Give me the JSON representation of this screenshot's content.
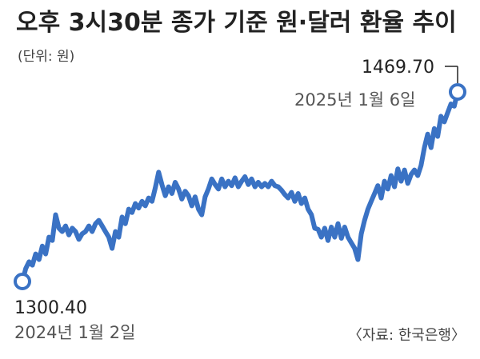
{
  "chart_data": {
    "type": "line",
    "title": "오후 3시30분 종가 기준 원·달러 환율 추이",
    "unit_label": "(단위: 원)",
    "source": "〈자료: 한국은행〉",
    "line_color": "#3a72c4",
    "start": {
      "value_label": "1300.40",
      "date_label": "2024년 1월 2일",
      "value": 1300.4
    },
    "end": {
      "value_label": "1469.70",
      "date_label": "2025년 1월 6일",
      "value": 1469.7
    },
    "ylim": [
      1290,
      1480
    ],
    "series": [
      {
        "values": [
          1300.4,
          1312,
          1318,
          1315,
          1325,
          1320,
          1332,
          1325,
          1340,
          1337,
          1360,
          1348,
          1345,
          1350,
          1342,
          1348,
          1345,
          1338,
          1343,
          1345,
          1350,
          1345,
          1352,
          1355,
          1350,
          1345,
          1340,
          1330,
          1345,
          1340,
          1358,
          1352,
          1365,
          1362,
          1370,
          1366,
          1372,
          1368,
          1375,
          1372,
          1384,
          1398,
          1387,
          1377,
          1385,
          1379,
          1389,
          1383,
          1374,
          1381,
          1377,
          1368,
          1376,
          1365,
          1360,
          1376,
          1383,
          1392,
          1387,
          1383,
          1392,
          1385,
          1390,
          1386,
          1393,
          1385,
          1390,
          1394,
          1387,
          1392,
          1385,
          1389,
          1385,
          1388,
          1385,
          1390,
          1386,
          1385,
          1382,
          1378,
          1375,
          1380,
          1372,
          1379,
          1370,
          1375,
          1365,
          1360,
          1348,
          1347,
          1340,
          1348,
          1337,
          1349,
          1340,
          1352,
          1339,
          1349,
          1340,
          1335,
          1330,
          1320,
          1343,
          1355,
          1365,
          1372,
          1379,
          1386,
          1375,
          1390,
          1383,
          1395,
          1385,
          1401,
          1390,
          1400,
          1388,
          1396,
          1400,
          1395,
          1404,
          1420,
          1432,
          1420,
          1437,
          1430,
          1448,
          1443,
          1451,
          1459,
          1457,
          1469.7
        ]
      }
    ]
  }
}
